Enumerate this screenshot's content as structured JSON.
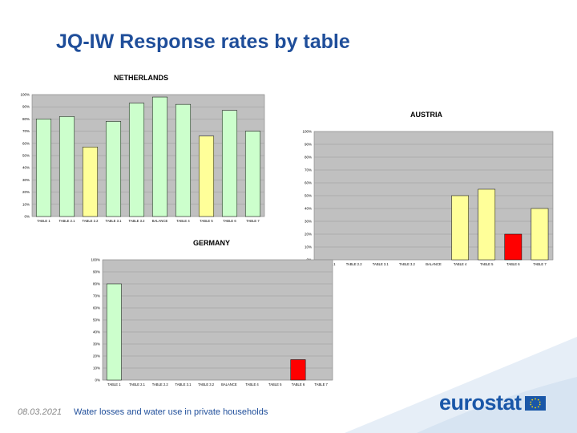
{
  "slide": {
    "title": "JQ-IW Response rates by table",
    "footer_date": "08.03.2021",
    "footer_text": "Water losses and water use in private households",
    "logo_text": "eurostat"
  },
  "colors": {
    "title": "#1f4e9a",
    "green": "#ccffcc",
    "yellow": "#ffff99",
    "red": "#ff0000",
    "plot_bg": "#c0c0c0"
  },
  "chart_data": [
    {
      "type": "bar",
      "title": "NETHERLANDS",
      "ylim": [
        0,
        100
      ],
      "yticks": [
        "0%",
        "10%",
        "20%",
        "30%",
        "40%",
        "50%",
        "60%",
        "70%",
        "80%",
        "90%",
        "100%"
      ],
      "categories": [
        "TABLE 1",
        "TABLE 2.1",
        "TABLE 2.2",
        "TABLE 3.1",
        "TABLE 3.2",
        "BALANCE",
        "TABLE 4",
        "TABLE 5",
        "TABLE 6",
        "TABLE 7"
      ],
      "values": [
        80,
        82,
        57,
        78,
        93,
        98,
        92,
        66,
        87,
        70
      ],
      "colors": [
        "green",
        "green",
        "yellow",
        "green",
        "green",
        "green",
        "green",
        "yellow",
        "green",
        "green"
      ],
      "grid": true
    },
    {
      "type": "bar",
      "title": "AUSTRIA",
      "ylim": [
        0,
        100
      ],
      "yticks": [
        "0%",
        "10%",
        "20%",
        "30%",
        "40%",
        "50%",
        "60%",
        "70%",
        "80%",
        "90%",
        "100%"
      ],
      "categories": [
        "TABLE 2.1",
        "TABLE 2.2",
        "TABLE 3.1",
        "TABLE 3.2",
        "BALANCE",
        "TABLE 4",
        "TABLE 5",
        "TABLE 6",
        "TABLE 7"
      ],
      "values": [
        0,
        0,
        0,
        0,
        0,
        50,
        55,
        20,
        40
      ],
      "colors": [
        "yellow",
        "yellow",
        "yellow",
        "yellow",
        "yellow",
        "yellow",
        "yellow",
        "red",
        "yellow"
      ],
      "grid": true
    },
    {
      "type": "bar",
      "title": "GERMANY",
      "ylim": [
        0,
        100
      ],
      "yticks": [
        "0%",
        "10%",
        "20%",
        "30%",
        "40%",
        "50%",
        "60%",
        "70%",
        "80%",
        "90%",
        "100%"
      ],
      "categories": [
        "TABLE 1",
        "TABLE 2.1",
        "TABLE 2.2",
        "TABLE 3.1",
        "TABLE 3.2",
        "BALANCE",
        "TABLE 4",
        "TABLE 5",
        "TABLE 6",
        "TABLE 7"
      ],
      "values": [
        80,
        0,
        0,
        0,
        0,
        0,
        0,
        0,
        17,
        0
      ],
      "colors": [
        "green",
        "green",
        "green",
        "green",
        "green",
        "green",
        "green",
        "green",
        "red",
        "green"
      ],
      "grid": true
    }
  ]
}
